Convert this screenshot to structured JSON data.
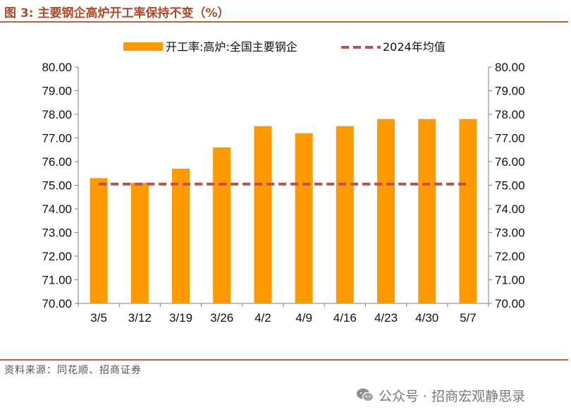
{
  "figure": {
    "title": "图 3:  主要钢企高炉开工率保持不变（%）",
    "source": "资料来源：同花顺、招商证券",
    "watermark": "公众号 · 招商宏观静思录",
    "watermark_icon": "wechat-icon"
  },
  "chart_data": {
    "type": "bar",
    "title": "",
    "xlabel": "",
    "ylabel": "",
    "categories": [
      "3/5",
      "3/12",
      "3/19",
      "3/26",
      "4/2",
      "4/9",
      "4/16",
      "4/23",
      "4/30",
      "5/7"
    ],
    "series": [
      {
        "name": "开工率:高炉:全国主要钢企",
        "type": "bar",
        "color": "#FF9900",
        "values": [
          75.3,
          75.1,
          75.7,
          76.6,
          77.5,
          77.2,
          77.5,
          77.8,
          77.8,
          77.8
        ]
      },
      {
        "name": "2024年均值",
        "type": "line",
        "style": "dashed",
        "color": "#C0504D",
        "values": [
          75.05,
          75.05,
          75.05,
          75.05,
          75.05,
          75.05,
          75.05,
          75.05,
          75.05,
          75.05
        ]
      }
    ],
    "ylim": [
      70,
      80
    ],
    "yticks": [
      "70.00",
      "71.00",
      "72.00",
      "73.00",
      "74.00",
      "75.00",
      "76.00",
      "77.00",
      "78.00",
      "79.00",
      "80.00"
    ],
    "secondary_yticks": [
      "70.00",
      "71.00",
      "72.00",
      "73.00",
      "74.00",
      "75.00",
      "76.00",
      "77.00",
      "78.00",
      "79.00",
      "80.00"
    ],
    "grid": false,
    "legend_position": "top"
  }
}
